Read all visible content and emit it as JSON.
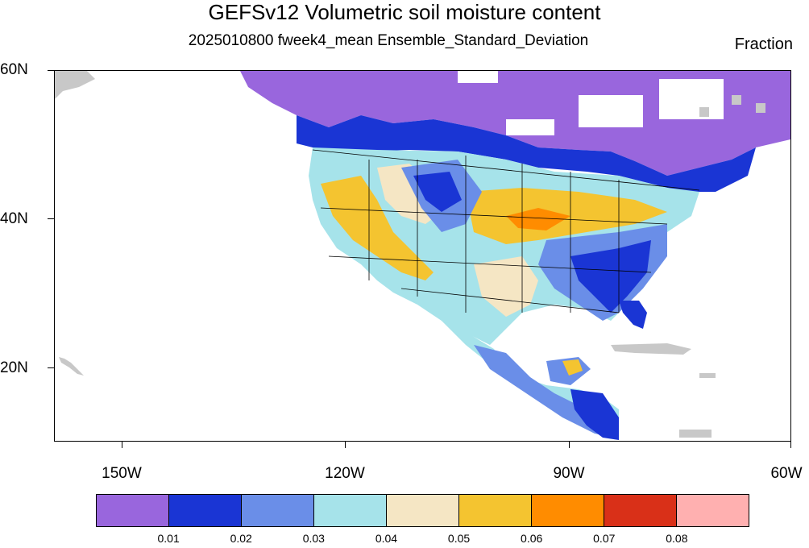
{
  "title": "GEFSv12 Volumetric soil moisture content",
  "subtitle": "2025010800 fweek4_mean Ensemble_Standard_Deviation",
  "units": "Fraction",
  "axes": {
    "lat_labels": [
      "60N",
      "40N",
      "20N"
    ],
    "lon_labels": [
      "150W",
      "120W",
      "90W",
      "60W"
    ]
  },
  "colorbar": {
    "colors": [
      "#9966dd",
      "#1a35d4",
      "#6a8ee8",
      "#a6e3ea",
      "#f5e6c4",
      "#f4c430",
      "#ff8c00",
      "#d93018",
      "#ffb0b0"
    ],
    "labels": [
      "0.01",
      "0.02",
      "0.03",
      "0.04",
      "0.05",
      "0.06",
      "0.07",
      "0.08"
    ]
  },
  "map_features": {
    "ocean_color": "#ffffff",
    "land_no_data_color": "#c8c8c8",
    "boundary_color": "#000000"
  }
}
